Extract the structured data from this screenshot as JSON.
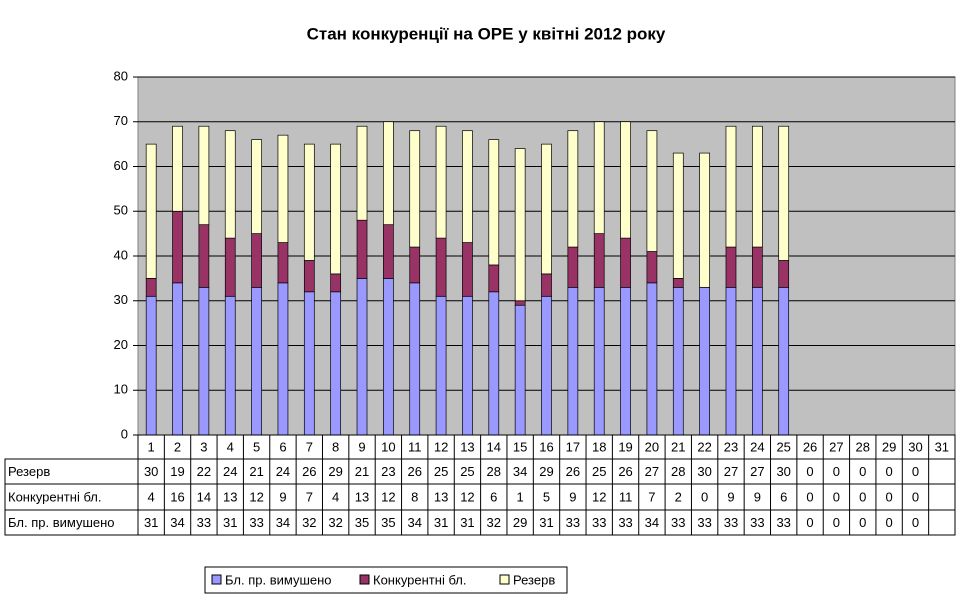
{
  "chart_data": {
    "type": "stacked_bar",
    "title": "Стан конкуренції на ОРЕ  у квітні 2012 року",
    "categories": [
      "1",
      "2",
      "3",
      "4",
      "5",
      "6",
      "7",
      "8",
      "9",
      "10",
      "11",
      "12",
      "13",
      "14",
      "15",
      "16",
      "17",
      "18",
      "19",
      "20",
      "21",
      "22",
      "23",
      "24",
      "25",
      "26",
      "27",
      "28",
      "29",
      "30",
      "31"
    ],
    "series": [
      {
        "name": "Бл. пр. вимушено",
        "color": "#9999ff",
        "values": [
          31,
          34,
          33,
          31,
          33,
          34,
          32,
          32,
          35,
          35,
          34,
          31,
          31,
          32,
          29,
          31,
          33,
          33,
          33,
          34,
          33,
          33,
          33,
          33,
          33,
          0,
          0,
          0,
          0,
          0,
          null
        ]
      },
      {
        "name": "Конкурентні бл.",
        "color": "#993366",
        "values": [
          4,
          16,
          14,
          13,
          12,
          9,
          7,
          4,
          13,
          12,
          8,
          13,
          12,
          6,
          1,
          5,
          9,
          12,
          11,
          7,
          2,
          0,
          9,
          9,
          6,
          0,
          0,
          0,
          0,
          0,
          null
        ]
      },
      {
        "name": "Резерв",
        "color": "#ffffcc",
        "values": [
          30,
          19,
          22,
          24,
          21,
          24,
          26,
          29,
          21,
          23,
          26,
          25,
          25,
          28,
          34,
          29,
          26,
          25,
          26,
          27,
          28,
          30,
          27,
          27,
          30,
          0,
          0,
          0,
          0,
          0,
          null
        ]
      }
    ],
    "ylim": [
      0,
      80
    ],
    "yticks": [
      0,
      10,
      20,
      30,
      40,
      50,
      60,
      70,
      80
    ],
    "grid": true
  }
}
